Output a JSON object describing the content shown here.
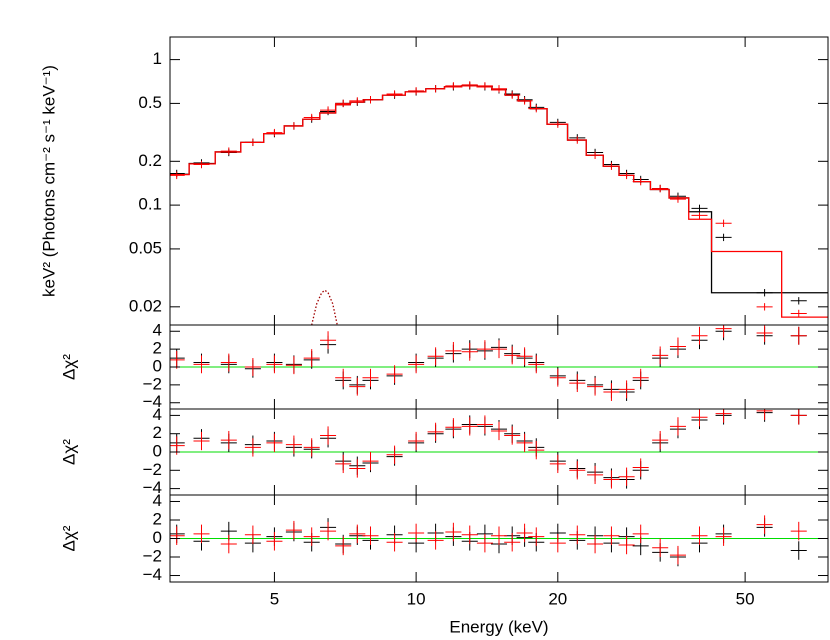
{
  "chart_data": [
    {
      "type": "line",
      "ylabel": "keV² (Photons cm⁻² s⁻¹ keV⁻¹)",
      "xscale": "log",
      "yscale": "log",
      "xlim": [
        3,
        75
      ],
      "xticks": [
        5,
        10,
        20,
        50
      ],
      "ylim": [
        0.015,
        1.43
      ],
      "yticks": [
        0.02,
        0.05,
        0.1,
        0.2,
        0.5,
        1
      ],
      "x": [
        3.1,
        3.5,
        4,
        4.5,
        5,
        5.5,
        6,
        6.5,
        7,
        7.5,
        8,
        9,
        10,
        11,
        12,
        13,
        14,
        15,
        16,
        17,
        18,
        20,
        22,
        24,
        26,
        28,
        30,
        33,
        36,
        40,
        45,
        55,
        65
      ],
      "series": [
        {
          "style": "points",
          "color": "#000000",
          "values": [
            0.165,
            0.195,
            0.23,
            0.27,
            0.31,
            0.35,
            0.39,
            0.44,
            0.5,
            0.51,
            0.53,
            0.57,
            0.6,
            0.63,
            0.65,
            0.66,
            0.65,
            0.62,
            0.58,
            0.53,
            0.47,
            0.37,
            0.29,
            0.23,
            0.19,
            0.165,
            0.15,
            0.13,
            0.115,
            0.095,
            0.06,
            0.025,
            0.022
          ]
        },
        {
          "style": "points",
          "color": "#ff0000",
          "values": [
            0.16,
            0.19,
            0.235,
            0.27,
            0.315,
            0.35,
            0.4,
            0.45,
            0.5,
            0.52,
            0.53,
            0.58,
            0.61,
            0.63,
            0.66,
            0.67,
            0.66,
            0.63,
            0.57,
            0.52,
            0.46,
            0.36,
            0.28,
            0.22,
            0.185,
            0.16,
            0.145,
            0.13,
            0.11,
            0.085,
            0.075,
            0.02,
            0.018
          ]
        },
        {
          "style": "step",
          "color": "#000000",
          "values": [
            0.163,
            0.193,
            0.232,
            0.27,
            0.31,
            0.35,
            0.39,
            0.43,
            0.49,
            0.51,
            0.53,
            0.57,
            0.6,
            0.63,
            0.65,
            0.66,
            0.65,
            0.62,
            0.57,
            0.52,
            0.46,
            0.36,
            0.28,
            0.22,
            0.185,
            0.16,
            0.145,
            0.128,
            0.112,
            0.09,
            0.025,
            0.025,
            0.025
          ]
        },
        {
          "style": "step",
          "color": "#ff0000",
          "values": [
            0.162,
            0.192,
            0.232,
            0.27,
            0.31,
            0.35,
            0.39,
            0.43,
            0.49,
            0.51,
            0.53,
            0.57,
            0.6,
            0.63,
            0.65,
            0.66,
            0.65,
            0.62,
            0.57,
            0.52,
            0.46,
            0.36,
            0.28,
            0.22,
            0.185,
            0.16,
            0.145,
            0.128,
            0.112,
            0.08,
            0.048,
            0.048,
            0.017
          ]
        },
        {
          "style": "dotted",
          "color": "#a00000",
          "x": [
            6.0,
            6.15,
            6.3,
            6.4,
            6.5,
            6.65,
            6.8
          ],
          "values": [
            0.015,
            0.021,
            0.025,
            0.026,
            0.025,
            0.021,
            0.015
          ]
        }
      ]
    },
    {
      "type": "residual",
      "ylabel": "Δχ²",
      "xscale": "log",
      "xlim": [
        3,
        75
      ],
      "xticks": [
        5,
        10,
        20,
        50
      ],
      "ylim": [
        -4.7,
        4.7
      ],
      "yticks": [
        {
          "value": -4,
          "label": "−4"
        },
        {
          "value": -2,
          "label": "−2"
        },
        0,
        2,
        4
      ],
      "x": [
        3.1,
        3.5,
        4,
        4.5,
        5,
        5.5,
        6,
        6.5,
        7,
        7.5,
        8,
        9,
        10,
        11,
        12,
        13,
        14,
        15,
        16,
        17,
        18,
        20,
        22,
        24,
        26,
        28,
        30,
        33,
        36,
        40,
        45,
        55,
        65
      ],
      "series": [
        {
          "color": "#000000",
          "values": [
            1,
            0.5,
            0.3,
            -0.2,
            0.5,
            0.3,
            0.8,
            2.5,
            -1.5,
            -2,
            -1.5,
            -1,
            0.5,
            1,
            1.5,
            2,
            1.8,
            2.2,
            1.5,
            1,
            0.5,
            -1,
            -1.5,
            -2,
            -2.5,
            -2.8,
            -1.5,
            1,
            2,
            3,
            4,
            3.5,
            3.5
          ]
        },
        {
          "color": "#ff0000",
          "values": [
            0.8,
            0.3,
            0.5,
            0,
            0.3,
            0.2,
            1,
            3,
            -1.2,
            -2.2,
            -1.2,
            -0.8,
            0.3,
            1.2,
            1.8,
            1.7,
            2,
            2,
            1.3,
            1.2,
            0.3,
            -1.2,
            -1.8,
            -2.2,
            -2.8,
            -2.5,
            -1.2,
            1.3,
            2.3,
            3.5,
            4.3,
            3.8,
            3.5
          ]
        }
      ]
    },
    {
      "type": "residual",
      "ylabel": "Δχ²",
      "xscale": "log",
      "xlim": [
        3,
        75
      ],
      "xticks": [
        5,
        10,
        20,
        50
      ],
      "ylim": [
        -4.7,
        4.7
      ],
      "yticks": [
        {
          "value": -4,
          "label": "−4"
        },
        {
          "value": -2,
          "label": "−2"
        },
        0,
        2,
        4
      ],
      "x": [
        3.1,
        3.5,
        4,
        4.5,
        5,
        5.5,
        6,
        6.5,
        7,
        7.5,
        8,
        9,
        10,
        11,
        12,
        13,
        14,
        15,
        16,
        17,
        18,
        20,
        22,
        24,
        26,
        28,
        30,
        33,
        36,
        40,
        45,
        55,
        65
      ],
      "series": [
        {
          "color": "#000000",
          "values": [
            1,
            1.5,
            1,
            0.8,
            1.2,
            0.5,
            0.3,
            1.5,
            -1,
            -1.5,
            -1.2,
            -0.5,
            1,
            2,
            2.5,
            3,
            2.8,
            2.5,
            2,
            1.2,
            0.5,
            -1,
            -1.8,
            -2.2,
            -2.8,
            -3,
            -2,
            1,
            2.5,
            3.5,
            4,
            4.3,
            4
          ]
        },
        {
          "color": "#ff0000",
          "values": [
            0.7,
            1.2,
            1.3,
            0.5,
            1,
            0.8,
            0.5,
            1.8,
            -1.3,
            -1.8,
            -1,
            -0.3,
            1.2,
            2.2,
            2.7,
            2.8,
            3,
            2.3,
            1.8,
            1,
            0.2,
            -1.3,
            -2,
            -2.5,
            -3,
            -2.7,
            -1.7,
            1.3,
            2.8,
            3.8,
            4.2,
            4.5,
            4
          ]
        }
      ]
    },
    {
      "type": "residual",
      "ylabel": "Δχ²",
      "xlabel": "Energy (keV)",
      "xscale": "log",
      "xlim": [
        3,
        75
      ],
      "xticks": [
        5,
        10,
        20,
        50
      ],
      "ylim": [
        -4.7,
        4.7
      ],
      "yticks": [
        {
          "value": -4,
          "label": "−4"
        },
        {
          "value": -2,
          "label": "−2"
        },
        0,
        2,
        4
      ],
      "x": [
        3.1,
        3.5,
        4,
        4.5,
        5,
        5.5,
        6,
        6.5,
        7,
        7.5,
        8,
        9,
        10,
        11,
        12,
        13,
        14,
        15,
        16,
        17,
        18,
        20,
        22,
        24,
        26,
        28,
        30,
        33,
        36,
        40,
        45,
        55,
        65
      ],
      "series": [
        {
          "color": "#000000",
          "values": [
            0.5,
            -0.3,
            0.8,
            -0.5,
            0.2,
            0.7,
            -0.4,
            1.2,
            -0.6,
            0.3,
            -0.2,
            0.4,
            -0.5,
            0.6,
            0.2,
            -0.3,
            0.5,
            -0.6,
            0.3,
            0.1,
            -0.4,
            0.6,
            -0.2,
            0.3,
            -0.5,
            0.2,
            -0.8,
            -1.5,
            -2,
            -0.5,
            0.5,
            1.2,
            -1.3
          ]
        },
        {
          "color": "#ff0000",
          "values": [
            0.3,
            0.5,
            -0.6,
            0.4,
            -0.3,
            0.9,
            0.2,
            0.8,
            -0.8,
            0.5,
            0.3,
            -0.4,
            0.6,
            -0.2,
            0.7,
            0.4,
            -0.5,
            0.3,
            -0.4,
            0.6,
            0.2,
            -0.5,
            0.4,
            -0.6,
            0.3,
            -0.7,
            0.5,
            -1,
            -1.8,
            0.3,
            0.2,
            1.5,
            0.8
          ]
        }
      ]
    }
  ]
}
